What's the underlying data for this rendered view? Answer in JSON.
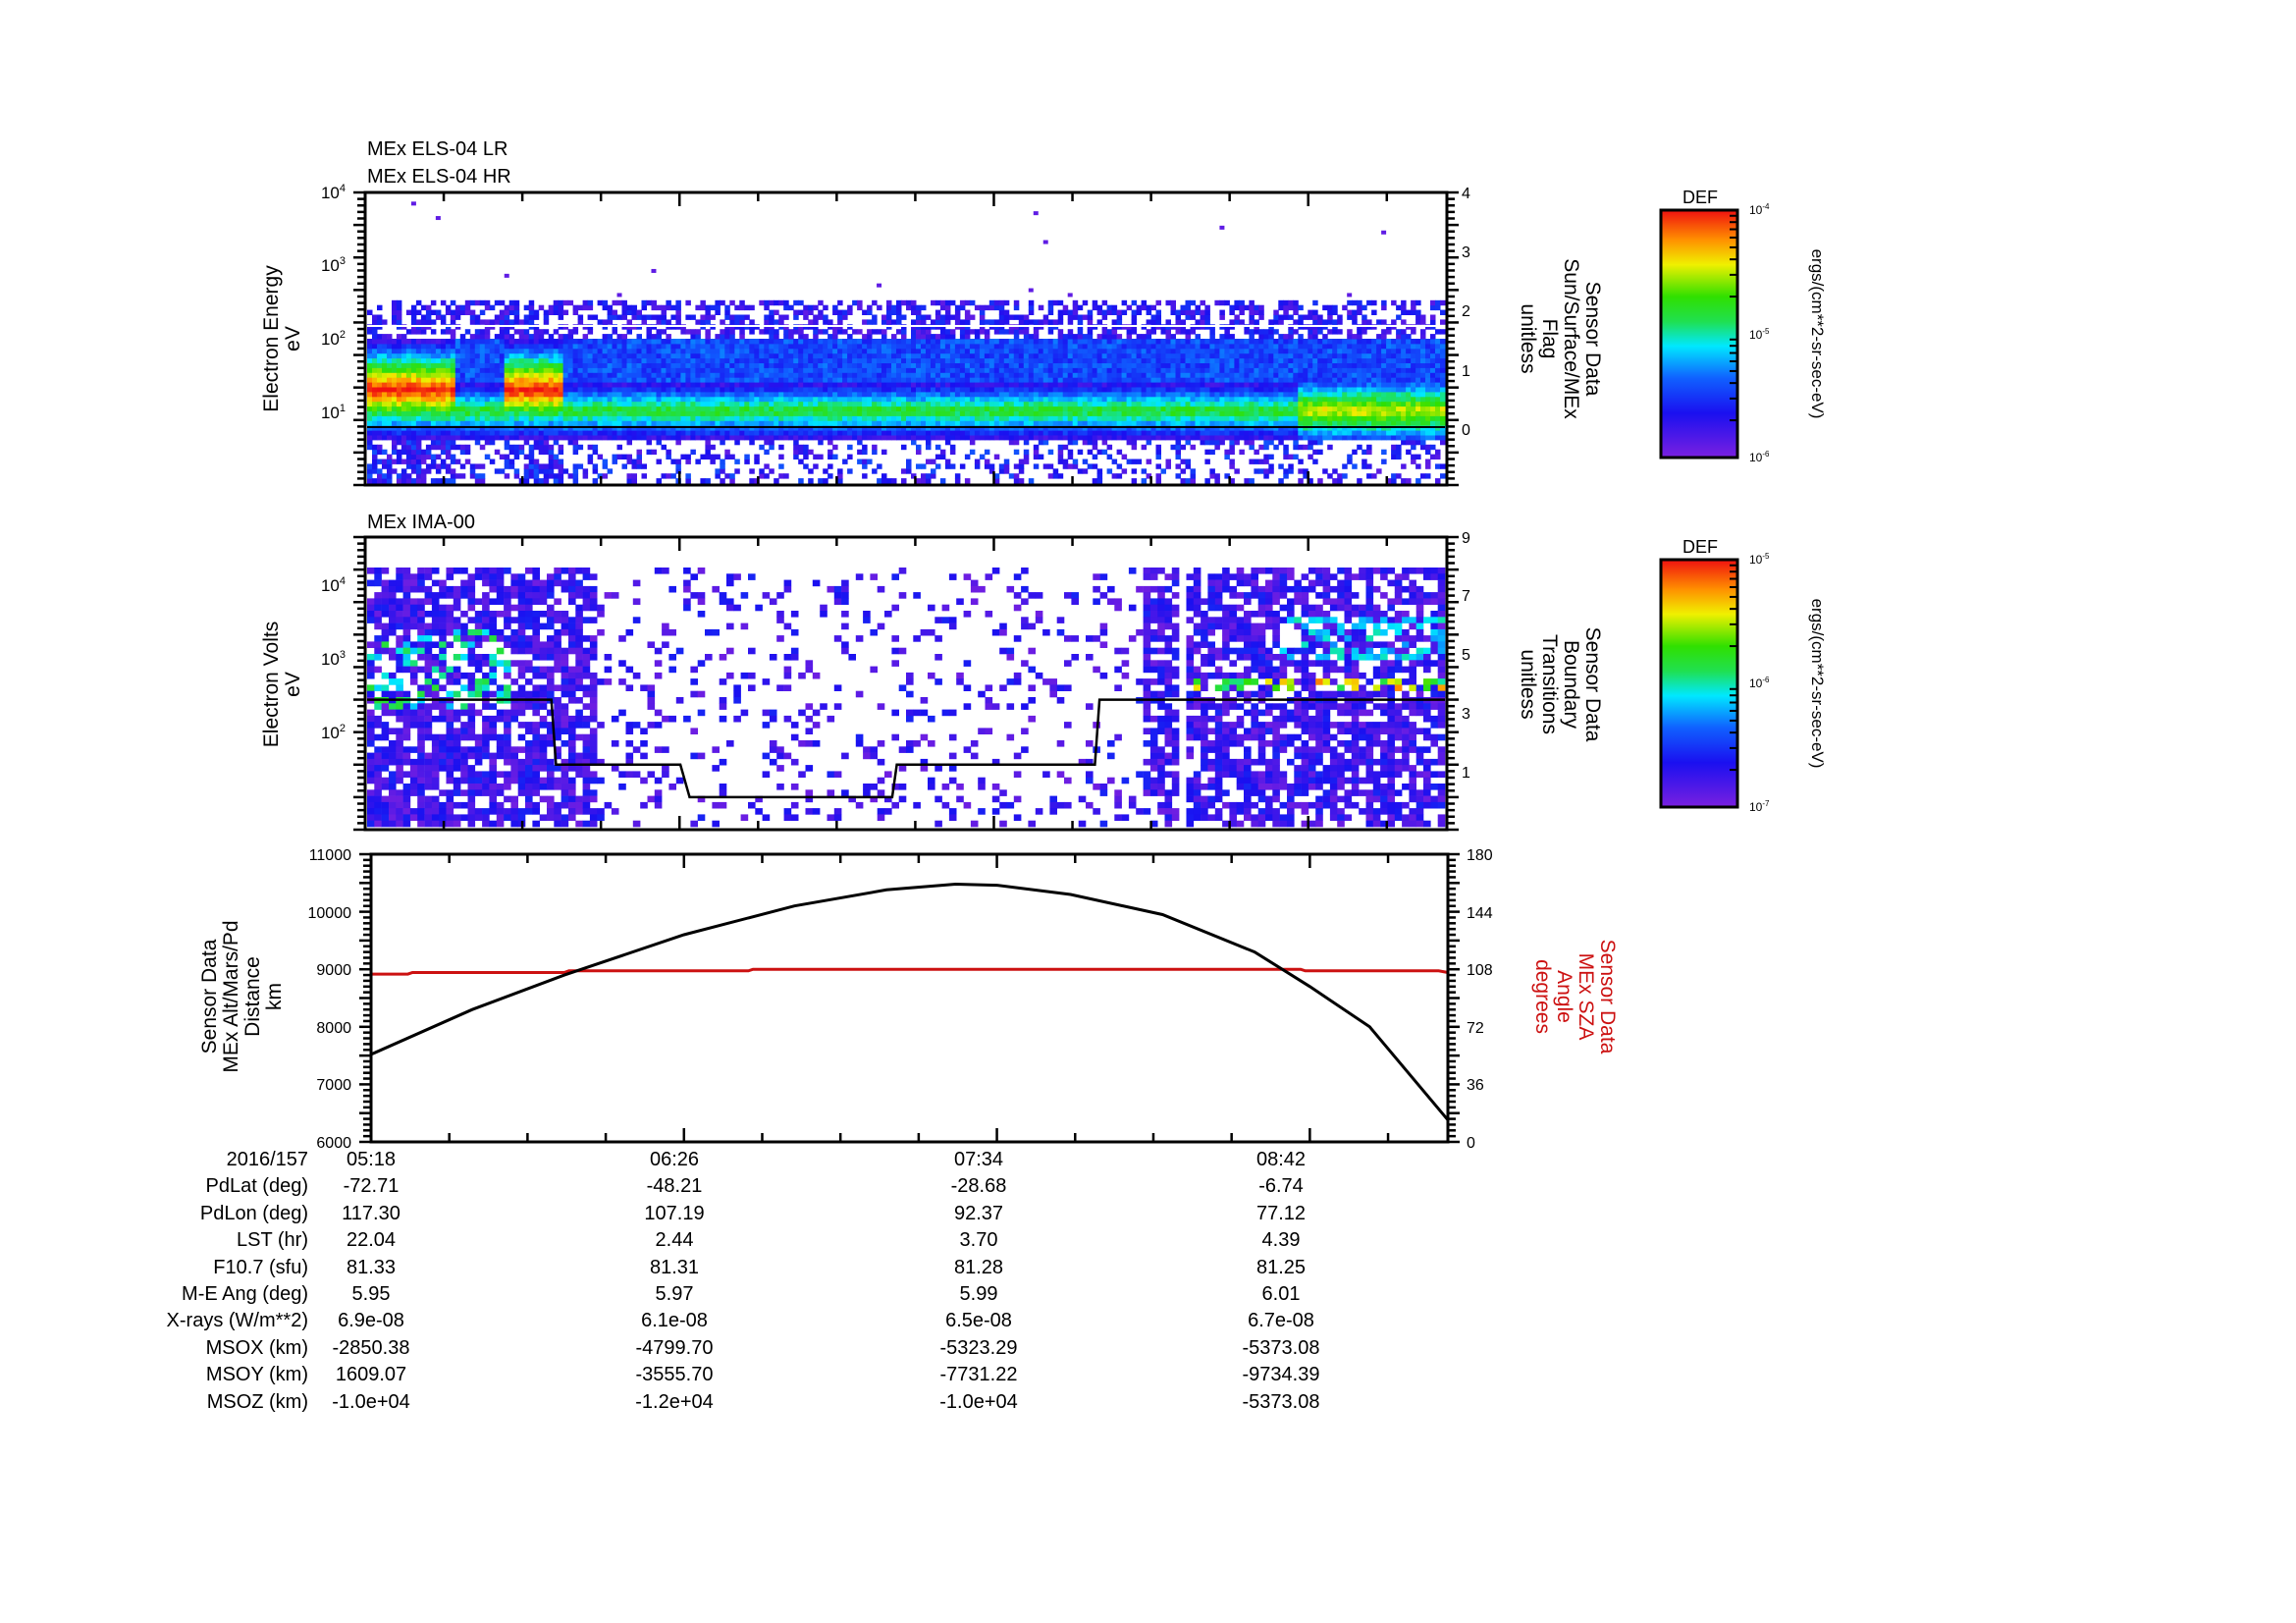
{
  "panels": [
    {
      "id": "els",
      "titles": [
        "MEx ELS-04 LR",
        "MEx ELS-04 HR"
      ],
      "left_label": [
        "Electron Energy",
        "eV"
      ],
      "right_label": [
        "Sensor Data",
        "Sun/Surface/MEx",
        "Flag",
        "unitless"
      ],
      "left_ticks": [
        "10^4",
        "10^3",
        "10^2",
        "10^1"
      ],
      "right_ticks": [
        "4",
        "3",
        "2",
        "1",
        "0"
      ],
      "colorbar": {
        "title": "DEF",
        "ticks": [
          "10^-4",
          "10^-5",
          "10^-6"
        ],
        "units": "ergs/(cm**2-sr-sec-eV)"
      }
    },
    {
      "id": "ima",
      "titles": [
        "MEx IMA-00"
      ],
      "left_label": [
        "Electron Volts",
        "eV"
      ],
      "right_label": [
        "Sensor Data",
        "Boundary",
        "Transitions",
        "unitless"
      ],
      "left_ticks": [
        "10^4",
        "10^3",
        "10^2"
      ],
      "right_ticks": [
        "9",
        "7",
        "5",
        "3",
        "1"
      ],
      "colorbar": {
        "title": "DEF",
        "ticks": [
          "10^-5",
          "10^-6",
          "10^-7"
        ],
        "units": "ergs/(cm**2-sr-sec-eV)"
      }
    },
    {
      "id": "alt",
      "titles": [],
      "left_label": [
        "Sensor Data",
        "MEx Alt/Mars/Pd",
        "Distance",
        "km"
      ],
      "right_label": [
        "Sensor Data",
        "MEx SZA",
        "Angle",
        "degrees"
      ],
      "left_ticks": [
        "11000",
        "10000",
        "9000",
        "8000",
        "7000",
        "6000"
      ],
      "right_ticks": [
        "180",
        "144",
        "108",
        "72",
        "36",
        "0"
      ]
    }
  ],
  "chart_data": [
    {
      "type": "heatmap",
      "title": "MEx ELS-04 LR / MEx ELS-04 HR",
      "ylabel": "Electron Energy (eV)",
      "y_scale": "log",
      "ylim": [
        2,
        10000
      ],
      "y2label": "Sensor Data Sun/Surface/MEx Flag (unitless)",
      "y2lim": [
        -0.5,
        4
      ],
      "colorbar": {
        "label": "DEF ergs/(cm**2-sr-sec-eV)",
        "range": [
          1e-06,
          0.0001
        ],
        "scale": "log"
      },
      "features": [
        {
          "time_range": [
            "05:18",
            "05:37"
          ],
          "energy_eV": [
            15,
            60
          ],
          "level": "high (red)"
        },
        {
          "time_range": [
            "05:47",
            "06:00"
          ],
          "energy_eV": [
            15,
            60
          ],
          "level": "high (red)"
        },
        {
          "time_range": [
            "06:00",
            "09:10"
          ],
          "energy_eV": [
            10,
            25
          ],
          "level": "medium (green)"
        },
        {
          "time_range": [
            "08:40",
            "09:10"
          ],
          "energy_eV": [
            15,
            30
          ],
          "level": "medium-high (yellow/orange)"
        }
      ],
      "flag_lines": [
        {
          "value": 1.7,
          "color": "#ffffff"
        },
        {
          "value": 0.0,
          "color": "#000000"
        }
      ]
    },
    {
      "type": "heatmap",
      "title": "MEx IMA-00",
      "ylabel": "Electron Volts (eV)",
      "y_scale": "log",
      "ylim": [
        10,
        40000
      ],
      "y2label": "Sensor Data Boundary Transitions (unitless)",
      "y2lim": [
        0,
        9
      ],
      "colorbar": {
        "label": "DEF ergs/(cm**2-sr-sec-eV)",
        "range": [
          1e-07,
          1e-05
        ],
        "scale": "log"
      },
      "boundary_transitions": {
        "x": [
          "05:18",
          "05:58",
          "05:59",
          "06:26",
          "06:28",
          "07:12",
          "07:13",
          "07:56",
          "07:57",
          "09:12"
        ],
        "y": [
          4,
          4,
          2,
          2,
          1,
          1,
          2,
          2,
          4,
          4
        ]
      }
    },
    {
      "type": "line",
      "xlabel": "2016/157",
      "x_ticks": [
        "05:18",
        "06:26",
        "07:34",
        "08:42"
      ],
      "ylabel": "Sensor Data MEx Alt/Mars/Pd Distance (km)",
      "ylim": [
        6000,
        11000
      ],
      "y2label": "Sensor Data MEx SZA Angle (degrees)",
      "y2lim": [
        0,
        180
      ],
      "series": [
        {
          "name": "MEx Alt/Mars/Pd Distance",
          "color": "#000000",
          "axis": "left",
          "x": [
            "05:18",
            "05:40",
            "06:00",
            "06:26",
            "06:50",
            "07:10",
            "07:25",
            "07:34",
            "07:50",
            "08:10",
            "08:30",
            "08:42",
            "08:55",
            "09:12"
          ],
          "values": [
            7520,
            8300,
            8900,
            9600,
            10100,
            10380,
            10480,
            10460,
            10300,
            9950,
            9300,
            8700,
            8000,
            6380
          ]
        },
        {
          "name": "MEx SZA Angle",
          "color": "#cc1111",
          "axis": "right",
          "x": [
            "05:18",
            "05:26",
            "05:27",
            "06:00",
            "06:01",
            "06:40",
            "06:41",
            "08:40",
            "08:41",
            "09:10",
            "09:12"
          ],
          "values": [
            105,
            105,
            106,
            106,
            107,
            107,
            108,
            108,
            107,
            107,
            106
          ]
        }
      ]
    }
  ],
  "ephemeris": {
    "labels": [
      "2016/157",
      "PdLat (deg)",
      "PdLon (deg)",
      "LST (hr)",
      "F10.7 (sfu)",
      "M-E Ang (deg)",
      "X-rays (W/m**2)",
      "MSOX (km)",
      "MSOY (km)",
      "MSOZ (km)"
    ],
    "columns": [
      [
        "05:18",
        "-72.71",
        "117.30",
        "22.04",
        "81.33",
        "5.95",
        "6.9e-08",
        "-2850.38",
        "1609.07",
        "-1.0e+04"
      ],
      [
        "06:26",
        "-48.21",
        "107.19",
        "2.44",
        "81.31",
        "5.97",
        "6.1e-08",
        "-4799.70",
        "-3555.70",
        "-1.2e+04"
      ],
      [
        "07:34",
        "-28.68",
        "92.37",
        "3.70",
        "81.28",
        "5.99",
        "6.5e-08",
        "-5323.29",
        "-7731.22",
        "-1.0e+04"
      ],
      [
        "08:42",
        "-6.74",
        "77.12",
        "4.39",
        "81.25",
        "6.01",
        "6.7e-08",
        "-5373.08",
        "-9734.39",
        "-5373.08"
      ]
    ]
  },
  "colors": {
    "axis": "#000000",
    "sza_line": "#cc1111",
    "sza_label": "#cc1111"
  }
}
